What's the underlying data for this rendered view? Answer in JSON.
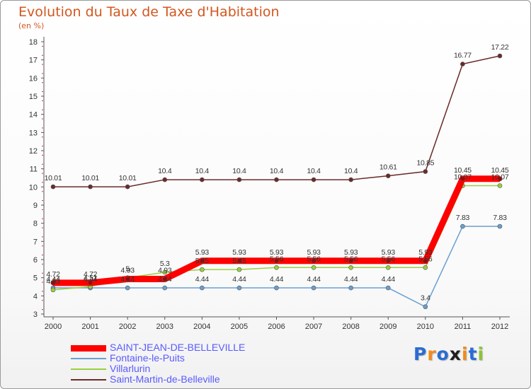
{
  "title": "Evolution du Taux de Taxe d'Habitation",
  "subtitle": "(en %)",
  "logo": {
    "text": "Proxiti",
    "letter_colors": [
      "#2a6cd4",
      "#f08c1e",
      "#2a6cd4",
      "#1e1e1e",
      "#f08c1e",
      "#2a6cd4",
      "#8cc33c"
    ]
  },
  "chart_data": {
    "type": "line",
    "x": [
      "2000",
      "2001",
      "2002",
      "2003",
      "2004",
      "2005",
      "2006",
      "2007",
      "2008",
      "2009",
      "2010",
      "2011",
      "2012"
    ],
    "y_ticks": [
      "3",
      "4",
      "5",
      "6",
      "7",
      "8",
      "9",
      "10",
      "11",
      "12",
      "13",
      "14",
      "15",
      "16",
      "17",
      "18"
    ],
    "ylim": [
      3,
      18
    ],
    "grid": false,
    "legend_position": "bottom-left",
    "series": [
      {
        "name": "SAINT-JEAN-DE-BELLEVILLE",
        "color": "#ff0000",
        "values": [
          4.72,
          4.72,
          4.93,
          4.93,
          5.93,
          5.93,
          5.93,
          5.93,
          5.93,
          5.93,
          5.93,
          10.45,
          10.45
        ],
        "labels": [
          "4.72",
          "4.72",
          "4.93",
          "4.93",
          "5.93",
          "5.93",
          "5.93",
          "5.93",
          "5.93",
          "5.93",
          "5.93",
          "10.45",
          "10.45"
        ]
      },
      {
        "name": "Fontaine-le-Puits",
        "color": "#6a9fd0",
        "values": [
          4.44,
          4.44,
          4.44,
          4.44,
          4.44,
          4.44,
          4.44,
          4.44,
          4.44,
          4.44,
          3.4,
          7.83,
          7.83
        ],
        "labels": [
          "4.44",
          "4.44",
          "4.44",
          "4.44",
          "4.44",
          "4.44",
          "4.44",
          "4.44",
          "4.44",
          "4.44",
          "3.4",
          "7.83",
          "7.83"
        ]
      },
      {
        "name": "Villarlurin",
        "color": "#99d040",
        "values": [
          4.33,
          4.51,
          5.0,
          5.3,
          5.45,
          5.45,
          5.56,
          5.56,
          5.56,
          5.56,
          5.56,
          10.07,
          10.07
        ],
        "labels": [
          "4.33",
          "4.51",
          "5",
          "5.3",
          "5.45",
          "5.45",
          "5.56",
          "5.56",
          "5.56",
          "5.56",
          "5.56",
          "10.07",
          "10.07"
        ]
      },
      {
        "name": "Saint-Martin-de-Belleville",
        "color": "#6b2a2a",
        "values": [
          10.01,
          10.01,
          10.01,
          10.4,
          10.4,
          10.4,
          10.4,
          10.4,
          10.4,
          10.61,
          10.85,
          16.77,
          17.22
        ],
        "labels": [
          "10.01",
          "10.01",
          "10.01",
          "10.4",
          "10.4",
          "10.4",
          "10.4",
          "10.4",
          "10.4",
          "10.61",
          "10.85",
          "16.77",
          "17.22"
        ]
      }
    ]
  }
}
